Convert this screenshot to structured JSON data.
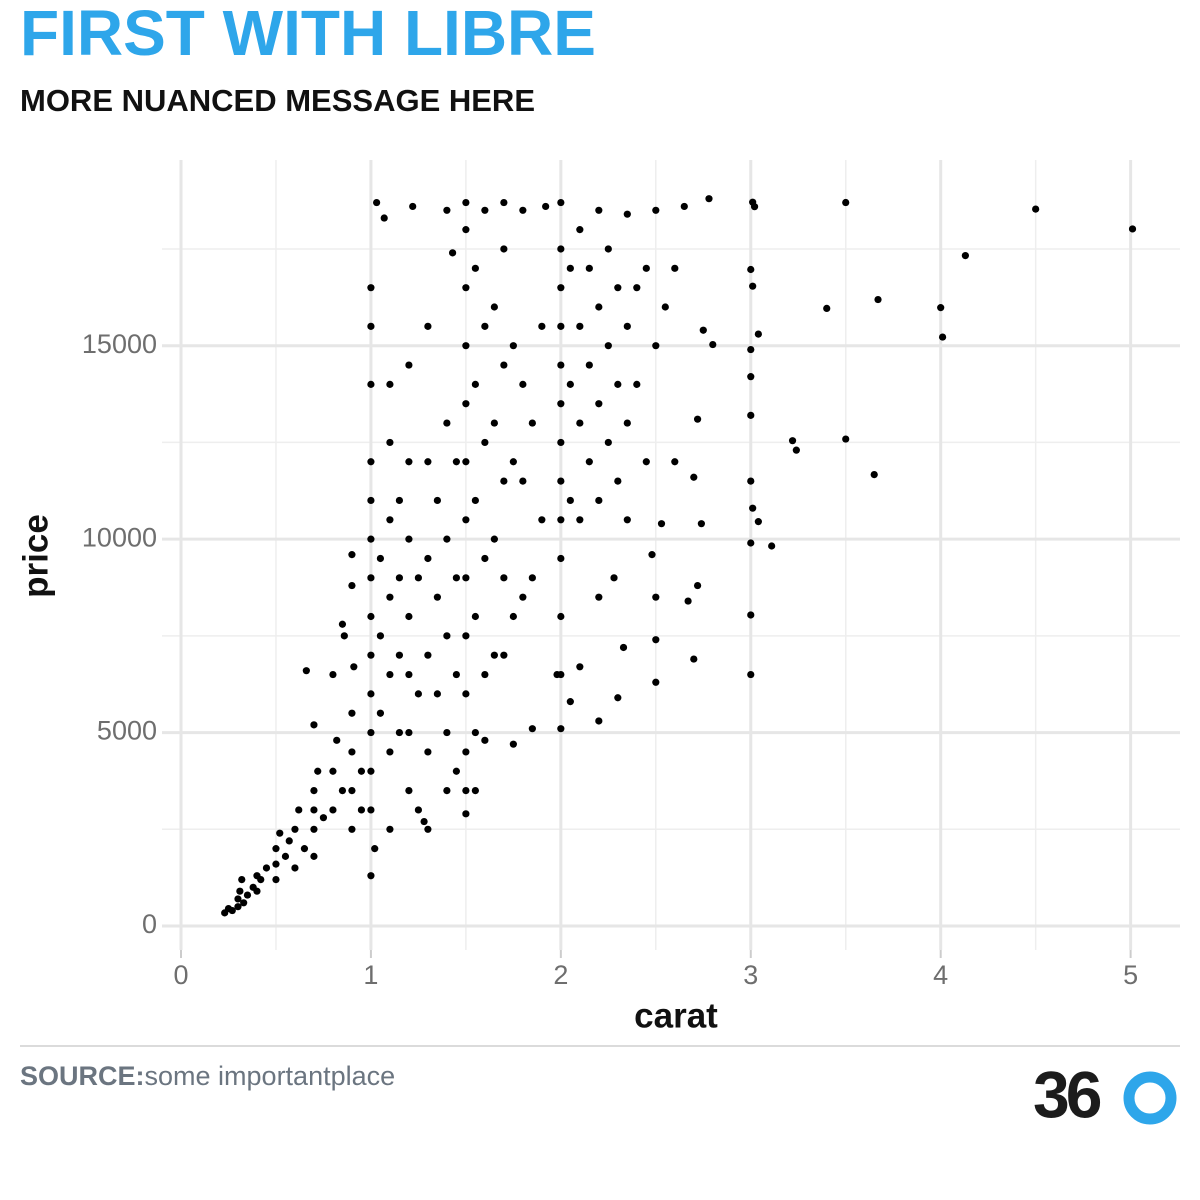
{
  "chart_data": {
    "type": "scatter",
    "title": "FIRST WITH LIBRE",
    "subtitle": "MORE NUANCED MESSAGE HERE",
    "x_label": "carat",
    "y_label": "price",
    "source_label": "SOURCE:",
    "source": "some importantplace",
    "logo": "36",
    "color": "#000000",
    "title_color": "#2ea6ea",
    "grid": true,
    "xlim": [
      -0.1,
      5.26
    ],
    "ylim": [
      -620,
      19800
    ],
    "xticks": [
      0,
      1,
      2,
      3,
      4,
      5
    ],
    "yticks": [
      0,
      5000,
      10000,
      15000
    ],
    "x": [
      5.01,
      4.5,
      4.13,
      4.01,
      4.0,
      3.67,
      3.5,
      3.4,
      3.65,
      3.5,
      3.22,
      3.24,
      3.11,
      3.04,
      3.01,
      3.02,
      3.0,
      3.01,
      3.0,
      3.0,
      3.0,
      3.04,
      3.01,
      3.0,
      3.0,
      3.0,
      3.0,
      2.8,
      2.78,
      2.75,
      2.72,
      2.7,
      2.74,
      2.72,
      2.7,
      2.67,
      2.5,
      2.5,
      2.5,
      2.53,
      2.48,
      0.23,
      0.25,
      0.3,
      0.3,
      0.31,
      0.32,
      0.35,
      0.4,
      0.4,
      0.33,
      0.27,
      0.38,
      0.42,
      0.45,
      0.5,
      0.5,
      0.5,
      0.52,
      0.55,
      0.57,
      0.6,
      0.6,
      0.62,
      0.65,
      0.7,
      0.7,
      0.7,
      0.72,
      0.7,
      0.75,
      0.8,
      0.8,
      0.82,
      0.85,
      0.9,
      0.9,
      0.9,
      0.9,
      0.91,
      0.9,
      0.9,
      0.95,
      0.95,
      0.66,
      0.7,
      0.8,
      0.85,
      0.86,
      1.0,
      1.0,
      1.0,
      1.0,
      1.0,
      1.0,
      1.0,
      1.0,
      1.0,
      1.0,
      1.0,
      1.03,
      1.0,
      1.0,
      1.02,
      1.0,
      1.05,
      1.05,
      1.05,
      1.1,
      1.1,
      1.1,
      1.1,
      1.1,
      1.1,
      1.07,
      1.15,
      1.15,
      1.15,
      1.15,
      1.2,
      1.2,
      1.2,
      1.2,
      1.2,
      1.2,
      1.22,
      1.25,
      1.25,
      1.25,
      1.3,
      1.3,
      1.3,
      1.3,
      1.3,
      1.35,
      1.35,
      1.35,
      1.4,
      1.4,
      1.4,
      1.4,
      1.4,
      1.43,
      1.45,
      1.45,
      1.45,
      1.2,
      1.1,
      1.3,
      1.28,
      1.4,
      1.45,
      1.5,
      1.5,
      1.5,
      1.5,
      1.5,
      1.5,
      1.5,
      1.5,
      1.5,
      1.5,
      1.5,
      1.5,
      1.5,
      1.55,
      1.55,
      1.55,
      1.55,
      1.55,
      1.6,
      1.6,
      1.6,
      1.6,
      1.6,
      1.65,
      1.65,
      1.65,
      1.65,
      1.7,
      1.7,
      1.7,
      1.7,
      1.7,
      1.7,
      1.75,
      1.75,
      1.75,
      1.8,
      1.8,
      1.8,
      1.8,
      1.85,
      1.85,
      1.9,
      1.9,
      1.92,
      1.55,
      1.6,
      1.75,
      1.85,
      1.98,
      2.0,
      2.0,
      2.0,
      2.0,
      2.0,
      2.0,
      2.0,
      2.0,
      2.0,
      2.0,
      2.0,
      2.0,
      2.0,
      2.05,
      2.05,
      2.05,
      2.1,
      2.1,
      2.1,
      2.1,
      2.15,
      2.15,
      2.15,
      2.2,
      2.2,
      2.2,
      2.2,
      2.25,
      2.25,
      2.25,
      2.3,
      2.3,
      2.3,
      2.35,
      2.35,
      2.35,
      2.4,
      2.4,
      2.45,
      2.45,
      2.5,
      2.5,
      2.55,
      2.6,
      2.6,
      2.65,
      2.05,
      2.1,
      2.2,
      2.3,
      2.33,
      2.2,
      2.28,
      2.35
    ],
    "values": [
      18018,
      18531,
      17329,
      15223,
      15984,
      16193,
      18701,
      15964,
      11668,
      12587,
      12545,
      12300,
      9823,
      10453,
      18710,
      18593,
      16970,
      16538,
      14900,
      14200,
      13200,
      15300,
      10800,
      11500,
      9900,
      8040,
      6500,
      15030,
      18800,
      15400,
      13100,
      11600,
      10400,
      8800,
      6900,
      8400,
      6300,
      7400,
      8500,
      10400,
      9600,
      340,
      450,
      500,
      700,
      900,
      1200,
      800,
      900,
      1300,
      600,
      400,
      1000,
      1200,
      1500,
      1600,
      1200,
      2000,
      2400,
      1800,
      2200,
      1500,
      2500,
      3000,
      2000,
      2500,
      3000,
      3500,
      4000,
      1800,
      2800,
      3000,
      4000,
      4800,
      3500,
      3500,
      4500,
      2500,
      5500,
      6700,
      9600,
      8800,
      4000,
      3000,
      6600,
      5200,
      6500,
      7800,
      7500,
      5000,
      6000,
      7000,
      8000,
      9000,
      10000,
      11000,
      12000,
      14000,
      15500,
      16500,
      18700,
      4000,
      3000,
      2000,
      1300,
      5500,
      7500,
      9500,
      4500,
      6500,
      8500,
      10500,
      12500,
      14000,
      18300,
      5000,
      7000,
      9000,
      11000,
      5000,
      6500,
      8000,
      10000,
      12000,
      14500,
      18600,
      6000,
      9000,
      3000,
      4500,
      7000,
      9500,
      12000,
      15500,
      6000,
      8500,
      11000,
      5000,
      7500,
      10000,
      13000,
      18500,
      17400,
      6500,
      9000,
      12000,
      3500,
      2500,
      2500,
      2700,
      3500,
      4000,
      2900,
      3500,
      4500,
      6000,
      7500,
      9000,
      10500,
      12000,
      13500,
      15000,
      16500,
      18000,
      18700,
      5000,
      8000,
      11000,
      14000,
      17000,
      6500,
      9500,
      12500,
      15500,
      18500,
      7000,
      10000,
      13000,
      16000,
      7000,
      9000,
      11500,
      14500,
      17500,
      18700,
      8000,
      12000,
      15000,
      8500,
      11500,
      14000,
      18500,
      9000,
      13000,
      10500,
      15500,
      18600,
      3500,
      4800,
      4700,
      5100,
      6500,
      5100,
      6500,
      8000,
      9500,
      10500,
      11500,
      12500,
      13500,
      14500,
      15500,
      16500,
      17500,
      18700,
      11000,
      14000,
      17000,
      10500,
      13000,
      15500,
      18000,
      12000,
      14500,
      17000,
      11000,
      13500,
      16000,
      18500,
      12500,
      15000,
      17500,
      11500,
      14000,
      16500,
      13000,
      15500,
      18400,
      14000,
      16500,
      12000,
      17000,
      15000,
      18500,
      16000,
      17000,
      12000,
      18600,
      5800,
      6700,
      5300,
      5900,
      7200,
      8500,
      9000,
      10500
    ]
  }
}
